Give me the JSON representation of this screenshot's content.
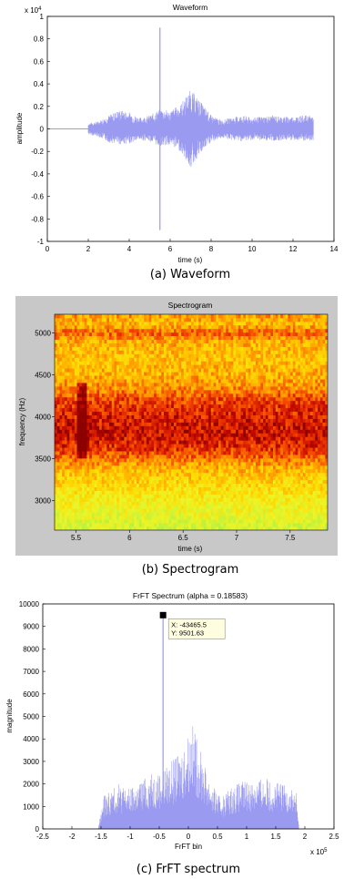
{
  "colors": {
    "signal": "#9a9af0",
    "axis": "#000000",
    "spec_frame_bg": "#c8c8c8",
    "datatip_bg": "#fffde0"
  },
  "chart_data": [
    {
      "type": "line",
      "title": "Waveform",
      "xlabel": "time (s)",
      "ylabel": "amplitude",
      "exponent_label": "x 10^4",
      "exponent_base": "x 10",
      "exponent_power": "4",
      "xlim": [
        0,
        14
      ],
      "ylim": [
        -1,
        1
      ],
      "x_ticks": [
        "0",
        "2",
        "4",
        "6",
        "8",
        "10",
        "12",
        "14"
      ],
      "y_ticks": [
        "-1",
        "-0.8",
        "-0.6",
        "-0.4",
        "-0.2",
        "0",
        "0.2",
        "0.4",
        "0.6",
        "0.8",
        "1"
      ],
      "envelope": {
        "x": [
          0,
          1.9,
          2.0,
          2.5,
          3.0,
          3.5,
          4.0,
          4.5,
          5.0,
          5.5,
          6.0,
          6.5,
          7.0,
          7.5,
          8.0,
          8.5,
          9.0,
          9.5,
          10.0,
          10.5,
          11.0,
          11.5,
          12.0,
          12.5,
          13.0
        ],
        "upper": [
          0,
          0,
          0.05,
          0.07,
          0.12,
          0.17,
          0.15,
          0.1,
          0.12,
          0.18,
          0.16,
          0.22,
          0.35,
          0.24,
          0.12,
          0.08,
          0.1,
          0.12,
          0.1,
          0.11,
          0.12,
          0.11,
          0.11,
          0.12,
          0.12
        ],
        "lower": [
          0,
          0,
          -0.05,
          -0.07,
          -0.12,
          -0.14,
          -0.13,
          -0.1,
          -0.11,
          -0.16,
          -0.14,
          -0.2,
          -0.35,
          -0.22,
          -0.12,
          -0.08,
          -0.1,
          -0.11,
          -0.1,
          -0.1,
          -0.11,
          -0.1,
          -0.1,
          -0.11,
          -0.11
        ]
      },
      "spikes": [
        {
          "x": 5.5,
          "max": 0.9,
          "min": -0.9
        }
      ],
      "caption": "(a)  Waveform"
    },
    {
      "type": "heatmap",
      "title": "Spectrogram",
      "xlabel": "time (s)",
      "ylabel": "frequency (Hz)",
      "xlim": [
        5.3,
        7.85
      ],
      "ylim": [
        2650,
        5220
      ],
      "x_ticks": [
        "5.5",
        "6",
        "6.5",
        "7",
        "7.5"
      ],
      "y_ticks": [
        "3000",
        "3500",
        "4000",
        "4500",
        "5000"
      ],
      "frequency_profile": {
        "freq": [
          2650,
          2800,
          3000,
          3200,
          3400,
          3600,
          3800,
          4000,
          4200,
          4350,
          4500,
          4700,
          4900,
          5000,
          5100,
          5220
        ],
        "intensity": [
          0.15,
          0.22,
          0.32,
          0.42,
          0.55,
          0.8,
          0.9,
          0.85,
          0.78,
          0.62,
          0.55,
          0.5,
          0.55,
          0.72,
          0.52,
          0.6
        ]
      },
      "highlight": {
        "time": 5.55,
        "freq_range": [
          3500,
          4400
        ]
      },
      "caption": "(b)  Spectrogram"
    },
    {
      "type": "bar",
      "title": "FrFT Spectrum (alpha = 0.18583)",
      "xlabel": "FrFT bin",
      "ylabel": "magnitude",
      "exponent_label": "x 10^5",
      "exponent_base": "x 10",
      "exponent_power": "5",
      "xlim": [
        -2.5,
        2.5
      ],
      "ylim": [
        0,
        10000
      ],
      "x_ticks": [
        "-2.5",
        "-2",
        "-1.5",
        "-1",
        "-0.5",
        "0",
        "0.5",
        "1",
        "1.5",
        "2",
        "2.5"
      ],
      "y_ticks": [
        "0",
        "1000",
        "2000",
        "3000",
        "4000",
        "5000",
        "6000",
        "7000",
        "8000",
        "9000",
        "10000"
      ],
      "envelope": {
        "x": [
          -2.5,
          -1.55,
          -1.45,
          -1.2,
          -1.0,
          -0.8,
          -0.6,
          -0.45,
          -0.3,
          -0.2,
          -0.1,
          0.0,
          0.05,
          0.1,
          0.2,
          0.4,
          0.55,
          0.7,
          0.9,
          1.1,
          1.3,
          1.5,
          1.7,
          1.85,
          1.9,
          2.5
        ],
        "top": [
          0,
          0,
          1500,
          2000,
          1800,
          2200,
          2500,
          2600,
          3000,
          3200,
          3600,
          4300,
          4700,
          4500,
          3500,
          2000,
          1400,
          1800,
          2100,
          2200,
          2300,
          2100,
          2000,
          1700,
          0,
          0
        ]
      },
      "peak": {
        "x": -43465.5,
        "y": 9501.63
      },
      "datatip": {
        "x_label": "X: -43465.5",
        "y_label": "Y: 9501.63"
      },
      "caption": "(c)  FrFT spectrum"
    }
  ]
}
